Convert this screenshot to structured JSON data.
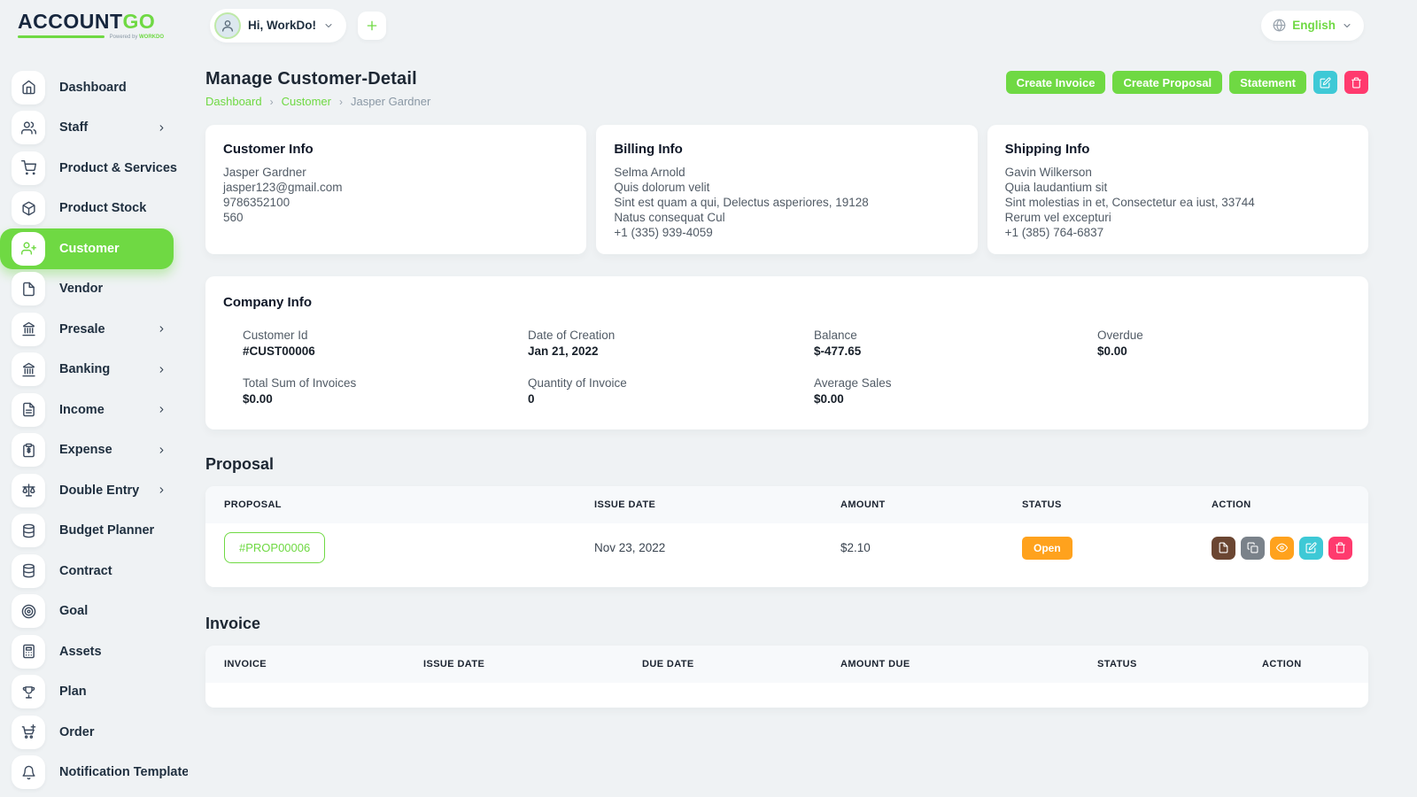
{
  "brand": {
    "name_primary": "ACCOUNT",
    "name_secondary": "GO",
    "tagline_prefix": "Powered by",
    "tagline_brand": "WORKDO"
  },
  "header": {
    "user_greeting": "Hi, WorkDo!",
    "language": "English"
  },
  "sidebar": {
    "items": [
      {
        "label": "Dashboard",
        "icon": "home"
      },
      {
        "label": "Staff",
        "icon": "users",
        "chevron": true
      },
      {
        "label": "Product & Services",
        "icon": "cart"
      },
      {
        "label": "Product Stock",
        "icon": "box"
      },
      {
        "label": "Customer",
        "icon": "user-plus",
        "active": true
      },
      {
        "label": "Vendor",
        "icon": "note"
      },
      {
        "label": "Presale",
        "icon": "bank",
        "chevron": true
      },
      {
        "label": "Banking",
        "icon": "bank",
        "chevron": true
      },
      {
        "label": "Income",
        "icon": "file-text",
        "chevron": true
      },
      {
        "label": "Expense",
        "icon": "clipboard",
        "chevron": true
      },
      {
        "label": "Double Entry",
        "icon": "scale",
        "chevron": true
      },
      {
        "label": "Budget Planner",
        "icon": "coins"
      },
      {
        "label": "Contract",
        "icon": "coins"
      },
      {
        "label": "Goal",
        "icon": "target"
      },
      {
        "label": "Assets",
        "icon": "calculator"
      },
      {
        "label": "Plan",
        "icon": "trophy"
      },
      {
        "label": "Order",
        "icon": "cart-plus"
      },
      {
        "label": "Notification Template",
        "icon": "bell"
      }
    ]
  },
  "page": {
    "title": "Manage Customer-Detail",
    "breadcrumb": [
      "Dashboard",
      "Customer",
      "Jasper Gardner"
    ],
    "separator": "›",
    "actions": [
      "Create Invoice",
      "Create Proposal",
      "Statement"
    ]
  },
  "customer_info": {
    "title": "Customer Info",
    "lines": [
      "Jasper Gardner",
      "jasper123@gmail.com",
      "9786352100",
      "560"
    ]
  },
  "billing_info": {
    "title": "Billing Info",
    "lines": [
      "Selma Arnold",
      "Quis dolorum velit",
      "Sint est quam a qui, Delectus asperiores, 19128",
      "Natus consequat Cul",
      "+1 (335) 939-4059"
    ]
  },
  "shipping_info": {
    "title": "Shipping Info",
    "lines": [
      "Gavin Wilkerson",
      "Quia laudantium sit",
      "Sint molestias in et, Consectetur ea iust, 33744",
      "Rerum vel excepturi",
      "+1 (385) 764-6837"
    ]
  },
  "company_info": {
    "title": "Company Info",
    "fields": [
      {
        "label": "Customer Id",
        "value": "#CUST00006"
      },
      {
        "label": "Date of Creation",
        "value": "Jan 21, 2022"
      },
      {
        "label": "Balance",
        "value": "$-477.65"
      },
      {
        "label": "Overdue",
        "value": "$0.00"
      },
      {
        "label": "Total Sum of Invoices",
        "value": "$0.00"
      },
      {
        "label": "Quantity of Invoice",
        "value": "0"
      },
      {
        "label": "Average Sales",
        "value": "$0.00"
      }
    ]
  },
  "proposal": {
    "title": "Proposal",
    "columns": [
      "PROPOSAL",
      "ISSUE DATE",
      "AMOUNT",
      "STATUS",
      "ACTION"
    ],
    "rows": [
      {
        "proposal": "#PROP00006",
        "issue_date": "Nov 23, 2022",
        "amount": "$2.10",
        "status": "Open"
      }
    ]
  },
  "invoice": {
    "title": "Invoice",
    "columns": [
      "INVOICE",
      "ISSUE DATE",
      "DUE DATE",
      "AMOUNT DUE",
      "STATUS",
      "ACTION"
    ],
    "rows": []
  },
  "colors": {
    "accent_green": "#6fd943",
    "status_open_orange": "#ffa21d",
    "edit_cyan": "#3ec9d6",
    "delete_pink": "#ff3a6e",
    "action_brown": "#6b4632",
    "action_gray": "#7a828a"
  }
}
